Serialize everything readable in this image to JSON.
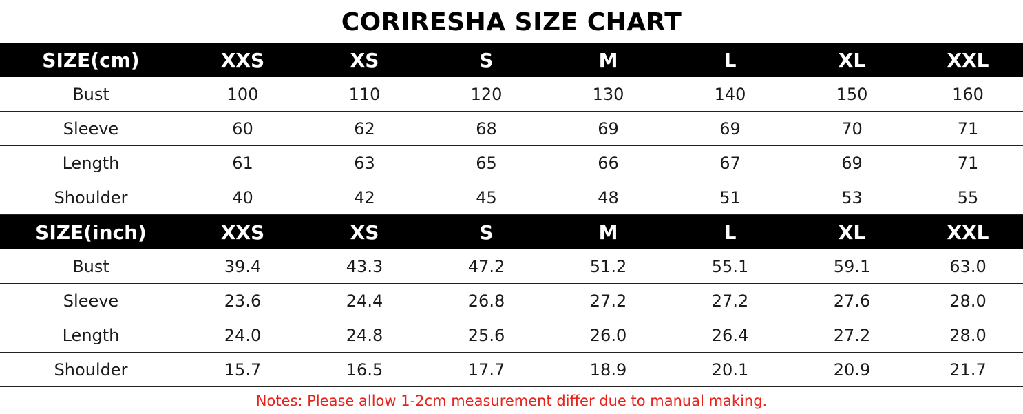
{
  "title": "CORIRESHA SIZE CHART",
  "sizes": [
    "XXS",
    "XS",
    "S",
    "M",
    "L",
    "XL",
    "XXL"
  ],
  "cm_table": {
    "header_label": "SIZE(cm)",
    "rows": [
      {
        "label": "Bust",
        "values": [
          "100",
          "110",
          "120",
          "130",
          "140",
          "150",
          "160"
        ]
      },
      {
        "label": "Sleeve",
        "values": [
          "60",
          "62",
          "68",
          "69",
          "69",
          "70",
          "71"
        ]
      },
      {
        "label": "Length",
        "values": [
          "61",
          "63",
          "65",
          "66",
          "67",
          "69",
          "71"
        ]
      },
      {
        "label": "Shoulder",
        "values": [
          "40",
          "42",
          "45",
          "48",
          "51",
          "53",
          "55"
        ]
      }
    ]
  },
  "inch_table": {
    "header_label": "SIZE(inch)",
    "rows": [
      {
        "label": "Bust",
        "values": [
          "39.4",
          "43.3",
          "47.2",
          "51.2",
          "55.1",
          "59.1",
          "63.0"
        ]
      },
      {
        "label": "Sleeve",
        "values": [
          "23.6",
          "24.4",
          "26.8",
          "27.2",
          "27.2",
          "27.6",
          "28.0"
        ]
      },
      {
        "label": "Length",
        "values": [
          "24.0",
          "24.8",
          "25.6",
          "26.0",
          "26.4",
          "27.2",
          "28.0"
        ]
      },
      {
        "label": "Shoulder",
        "values": [
          "15.7",
          "16.5",
          "17.7",
          "18.9",
          "20.1",
          "20.9",
          "21.7"
        ]
      }
    ]
  },
  "notes": "Notes: Please allow 1-2cm measurement differ due to manual making.",
  "colors": {
    "header_background": "#000000",
    "header_text": "#ffffff",
    "notes_text": "#e8231c"
  }
}
